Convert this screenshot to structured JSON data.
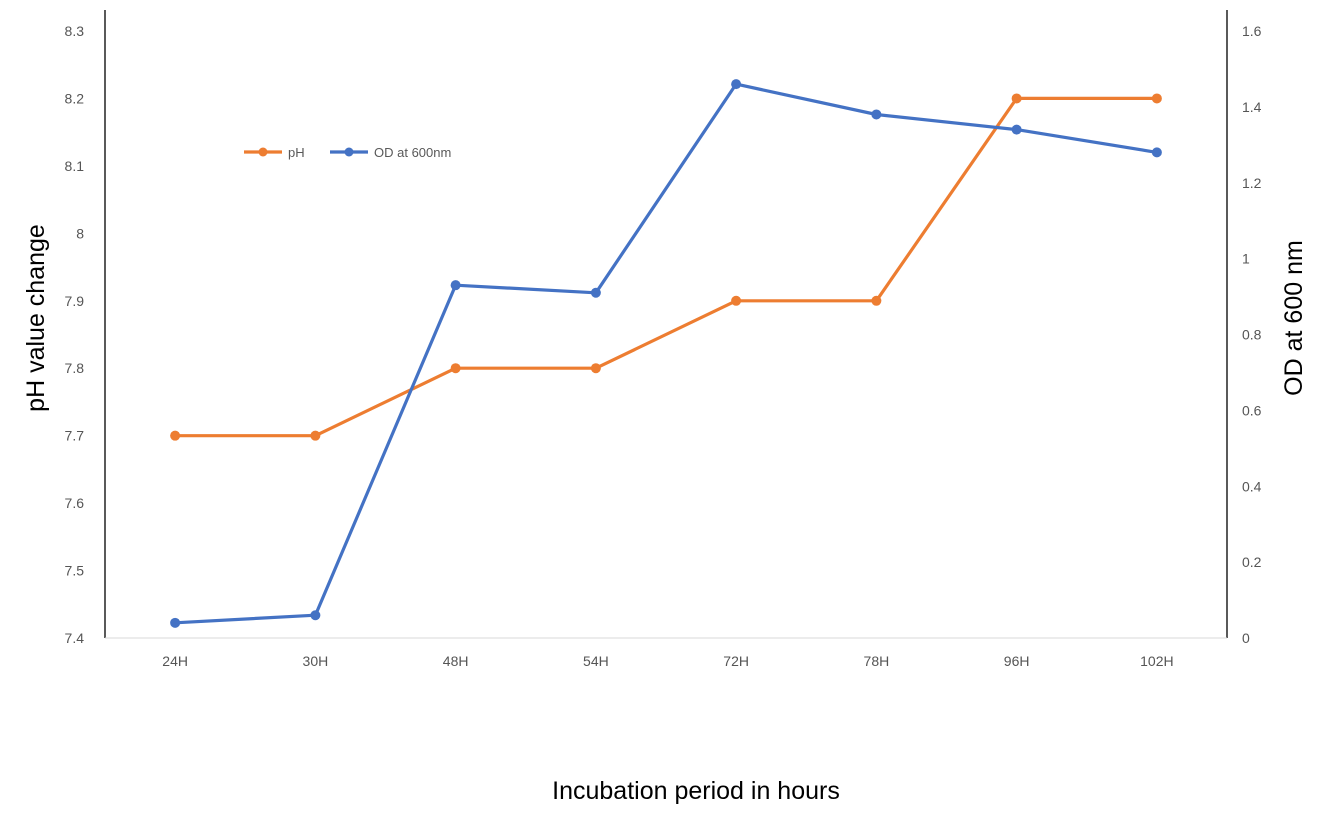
{
  "chart_data": {
    "type": "line",
    "title": "",
    "categories": [
      "24H",
      "30H",
      "48H",
      "54H",
      "72H",
      "78H",
      "96H",
      "102H"
    ],
    "xlabel": "Incubation period in hours",
    "y_left": {
      "label": "pH value change",
      "lim": [
        7.4,
        8.3
      ],
      "ticks": [
        7.4,
        7.5,
        7.6,
        7.7,
        7.8,
        7.9,
        8,
        8.1,
        8.2,
        8.3
      ]
    },
    "y_right": {
      "label": "OD at 600 nm",
      "lim": [
        0,
        1.6
      ],
      "ticks": [
        0,
        0.2,
        0.4,
        0.6,
        0.8,
        1,
        1.2,
        1.4,
        1.6
      ]
    },
    "series": [
      {
        "name": "pH",
        "axis": "left",
        "color": "#ED7D31",
        "values": [
          7.7,
          7.7,
          7.8,
          7.8,
          7.9,
          7.9,
          8.2,
          8.2
        ]
      },
      {
        "name": "OD at 600nm",
        "axis": "right",
        "color": "#4472C4",
        "values": [
          0.04,
          0.06,
          0.93,
          0.91,
          1.46,
          1.38,
          1.34,
          1.28
        ]
      }
    ],
    "legend": {
      "position": "top-left",
      "entries": [
        "pH",
        "OD at 600nm"
      ]
    },
    "grid": false
  }
}
